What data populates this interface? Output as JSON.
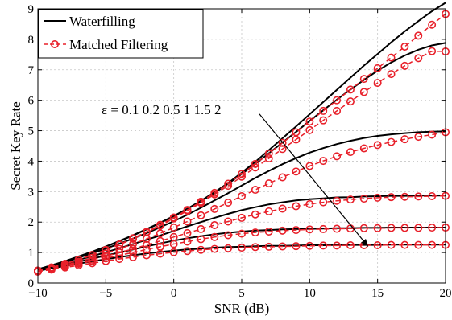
{
  "chart_data": {
    "type": "line",
    "title": "",
    "xlabel": "SNR (dB)",
    "ylabel": "Secret Key Rate",
    "xlim": [
      -10,
      20
    ],
    "ylim": [
      0,
      9
    ],
    "xticks": [
      -10,
      -5,
      0,
      5,
      10,
      15,
      20
    ],
    "yticks": [
      0,
      1,
      2,
      3,
      4,
      5,
      6,
      7,
      8,
      9
    ],
    "xtick_labels": [
      "−10",
      "−5",
      "0",
      "5",
      "10",
      "15",
      "20"
    ],
    "ytick_labels": [
      "0",
      "1",
      "2",
      "3",
      "4",
      "5",
      "6",
      "7",
      "8",
      "9"
    ],
    "grid": true,
    "legend_position": "top-left",
    "legend": [
      {
        "name": "Waterfilling",
        "style": "solid",
        "color": "#000000"
      },
      {
        "name": "Matched Filtering",
        "style": "dashed-circle",
        "color": "#e8202a"
      }
    ],
    "annotation": {
      "text": "ε = 0.1 0.2 0.5 1 1.5 2",
      "arrow_from": [
        6.3,
        5.55
      ],
      "arrow_to": [
        14.3,
        1.2
      ]
    },
    "x": [
      -10,
      -9,
      -8,
      -7,
      -6,
      -5,
      -4,
      -3,
      -2,
      -1,
      0,
      1,
      2,
      3,
      4,
      5,
      6,
      7,
      8,
      9,
      10,
      11,
      12,
      13,
      14,
      15,
      16,
      17,
      18,
      19,
      20
    ],
    "series": [
      {
        "group": "Waterfilling",
        "epsilon": "0.1",
        "values": [
          0.45,
          0.58,
          0.72,
          0.87,
          1.03,
          1.2,
          1.38,
          1.57,
          1.77,
          1.98,
          2.2,
          2.44,
          2.7,
          2.98,
          3.28,
          3.62,
          3.98,
          4.36,
          4.75,
          5.14,
          5.54,
          5.94,
          6.34,
          6.74,
          7.14,
          7.52,
          7.9,
          8.26,
          8.6,
          8.92,
          9.2
        ]
      },
      {
        "group": "Waterfilling",
        "epsilon": "0.2",
        "values": [
          0.45,
          0.58,
          0.71,
          0.86,
          1.02,
          1.19,
          1.37,
          1.56,
          1.76,
          1.97,
          2.19,
          2.43,
          2.68,
          2.96,
          3.26,
          3.58,
          3.91,
          4.26,
          4.61,
          4.96,
          5.32,
          5.67,
          6.02,
          6.35,
          6.67,
          6.97,
          7.24,
          7.47,
          7.66,
          7.8,
          7.88
        ]
      },
      {
        "group": "Waterfilling",
        "epsilon": "0.5",
        "values": [
          0.44,
          0.56,
          0.69,
          0.83,
          0.98,
          1.13,
          1.29,
          1.46,
          1.64,
          1.83,
          2.03,
          2.24,
          2.47,
          2.71,
          2.95,
          3.2,
          3.45,
          3.68,
          3.9,
          4.1,
          4.28,
          4.43,
          4.56,
          4.67,
          4.76,
          4.83,
          4.88,
          4.92,
          4.95,
          4.97,
          4.98
        ]
      },
      {
        "group": "Waterfilling",
        "epsilon": "1",
        "values": [
          0.43,
          0.53,
          0.64,
          0.76,
          0.88,
          1.01,
          1.14,
          1.28,
          1.42,
          1.56,
          1.71,
          1.86,
          2.0,
          2.14,
          2.27,
          2.39,
          2.49,
          2.58,
          2.65,
          2.71,
          2.75,
          2.78,
          2.81,
          2.82,
          2.84,
          2.85,
          2.86,
          2.86,
          2.87,
          2.87,
          2.87
        ]
      },
      {
        "group": "Waterfilling",
        "epsilon": "1.5",
        "values": [
          0.42,
          0.51,
          0.6,
          0.7,
          0.8,
          0.9,
          1.0,
          1.1,
          1.2,
          1.3,
          1.39,
          1.47,
          1.54,
          1.6,
          1.65,
          1.69,
          1.72,
          1.74,
          1.76,
          1.77,
          1.78,
          1.79,
          1.8,
          1.8,
          1.81,
          1.81,
          1.82,
          1.82,
          1.82,
          1.82,
          1.82
        ]
      },
      {
        "group": "Waterfilling",
        "epsilon": "2",
        "values": [
          0.4,
          0.48,
          0.56,
          0.64,
          0.71,
          0.78,
          0.85,
          0.91,
          0.97,
          1.02,
          1.06,
          1.1,
          1.13,
          1.16,
          1.18,
          1.19,
          1.21,
          1.22,
          1.22,
          1.23,
          1.24,
          1.24,
          1.25,
          1.25,
          1.25,
          1.25,
          1.26,
          1.26,
          1.26,
          1.26,
          1.26
        ]
      },
      {
        "group": "Matched Filtering",
        "epsilon": "0.1",
        "values": [
          0.41,
          0.51,
          0.63,
          0.77,
          0.92,
          1.09,
          1.27,
          1.47,
          1.68,
          1.91,
          2.15,
          2.4,
          2.67,
          2.96,
          3.26,
          3.58,
          3.91,
          4.25,
          4.6,
          4.95,
          5.3,
          5.65,
          6.0,
          6.35,
          6.7,
          7.05,
          7.4,
          7.76,
          8.12,
          8.48,
          8.83
        ]
      },
      {
        "group": "Matched Filtering",
        "epsilon": "0.2",
        "values": [
          0.41,
          0.51,
          0.63,
          0.76,
          0.91,
          1.08,
          1.26,
          1.45,
          1.66,
          1.88,
          2.12,
          2.37,
          2.63,
          2.91,
          3.19,
          3.49,
          3.79,
          4.09,
          4.4,
          4.71,
          5.02,
          5.34,
          5.65,
          5.96,
          6.27,
          6.57,
          6.86,
          7.13,
          7.38,
          7.61,
          7.6
        ]
      },
      {
        "group": "Matched Filtering",
        "epsilon": "0.5",
        "values": [
          0.4,
          0.49,
          0.59,
          0.7,
          0.83,
          0.97,
          1.12,
          1.28,
          1.45,
          1.63,
          1.82,
          2.02,
          2.22,
          2.43,
          2.64,
          2.85,
          3.06,
          3.27,
          3.47,
          3.66,
          3.84,
          4.01,
          4.16,
          4.3,
          4.42,
          4.53,
          4.63,
          4.72,
          4.8,
          4.87,
          4.95
        ]
      },
      {
        "group": "Matched Filtering",
        "epsilon": "1",
        "values": [
          0.39,
          0.47,
          0.56,
          0.66,
          0.77,
          0.88,
          1.0,
          1.12,
          1.25,
          1.38,
          1.51,
          1.64,
          1.77,
          1.9,
          2.02,
          2.14,
          2.25,
          2.35,
          2.44,
          2.52,
          2.59,
          2.65,
          2.7,
          2.74,
          2.77,
          2.8,
          2.82,
          2.83,
          2.84,
          2.85,
          2.86
        ]
      },
      {
        "group": "Matched Filtering",
        "epsilon": "1.5",
        "values": [
          0.38,
          0.46,
          0.54,
          0.63,
          0.72,
          0.81,
          0.91,
          1.0,
          1.1,
          1.19,
          1.28,
          1.36,
          1.44,
          1.51,
          1.57,
          1.62,
          1.66,
          1.69,
          1.72,
          1.74,
          1.76,
          1.77,
          1.78,
          1.79,
          1.8,
          1.8,
          1.81,
          1.81,
          1.81,
          1.82,
          1.82
        ]
      },
      {
        "group": "Matched Filtering",
        "epsilon": "2",
        "values": [
          0.37,
          0.44,
          0.51,
          0.58,
          0.65,
          0.72,
          0.79,
          0.85,
          0.91,
          0.96,
          1.01,
          1.05,
          1.09,
          1.12,
          1.14,
          1.16,
          1.18,
          1.19,
          1.2,
          1.21,
          1.22,
          1.23,
          1.23,
          1.24,
          1.24,
          1.24,
          1.25,
          1.25,
          1.25,
          1.25,
          1.25
        ]
      }
    ]
  }
}
